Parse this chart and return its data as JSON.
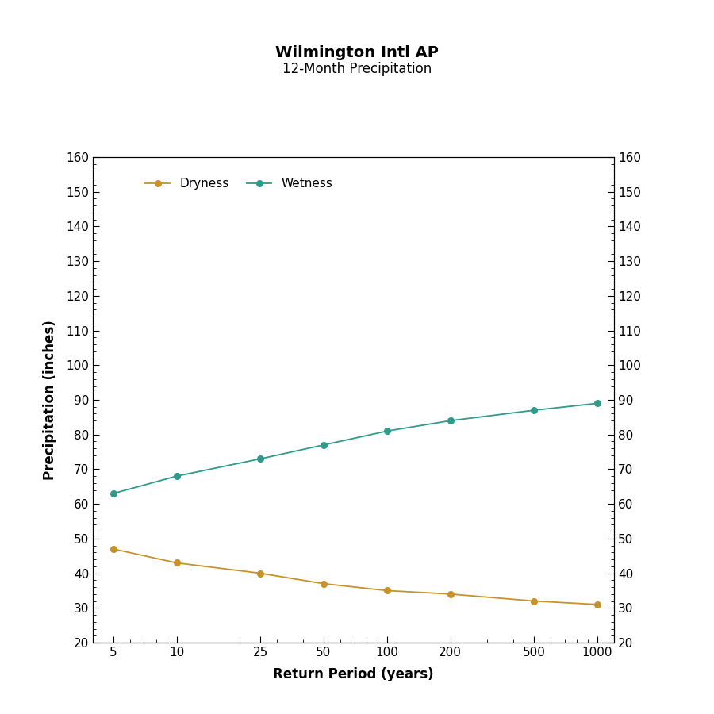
{
  "title": "Wilmington Intl AP",
  "subtitle": "12-Month Precipitation",
  "xlabel": "Return Period (years)",
  "ylabel": "Precipitation (inches)",
  "x_values": [
    5,
    10,
    25,
    50,
    100,
    200,
    500,
    1000
  ],
  "dryness_values": [
    47.0,
    43.0,
    40.0,
    37.0,
    35.0,
    34.0,
    32.0,
    31.0
  ],
  "wetness_values": [
    63.0,
    68.0,
    73.0,
    77.0,
    81.0,
    84.0,
    87.0,
    89.0
  ],
  "dryness_color": "#C8922A",
  "wetness_color": "#2E9B8B",
  "ylim": [
    20,
    160
  ],
  "yticks": [
    20,
    30,
    40,
    50,
    60,
    70,
    80,
    90,
    100,
    110,
    120,
    130,
    140,
    150,
    160
  ],
  "background_color": "#FFFFFF",
  "title_fontsize": 14,
  "subtitle_fontsize": 12,
  "axis_label_fontsize": 12,
  "tick_label_fontsize": 11,
  "legend_fontsize": 11,
  "line_width": 1.3,
  "marker_size": 5.5
}
